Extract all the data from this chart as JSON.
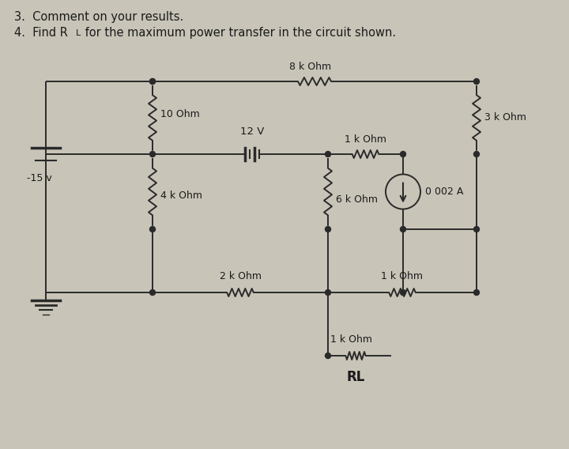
{
  "bg_color": "#c8c4b8",
  "line_color": "#2a2a2a",
  "text_color": "#1a1a1a",
  "labels": {
    "8k": "8 k Ohm",
    "3k": "3 k Ohm",
    "10": "10 Ohm",
    "12V": "12 V",
    "1k_mid": "1 k Ohm",
    "15V": "-15 v",
    "0002A": "0 002 A",
    "4k": "4 k Ohm",
    "6k": "6 k Ohm",
    "2k": "2 k Ohm",
    "1k_bot": "1 k Ohm",
    "1k_RL_label": "1 k Ohm",
    "RL": "RL"
  },
  "title1": "3.  Comment on your results.",
  "title2_pre": "4.  Find R",
  "title2_sub": "L",
  "title2_post": " for the maximum power transfer in the circuit shown."
}
